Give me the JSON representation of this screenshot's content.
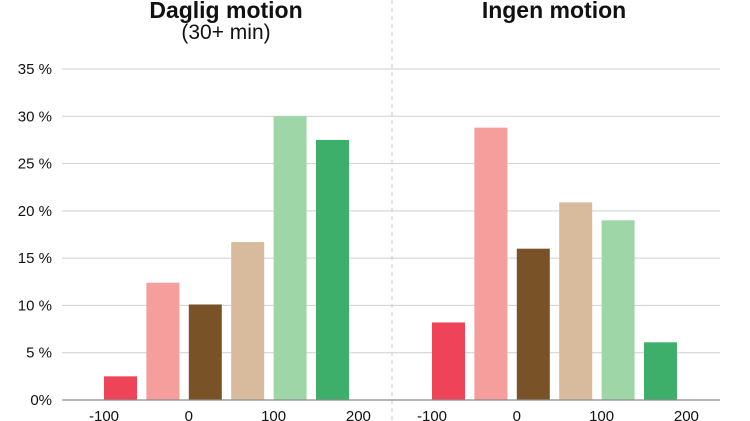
{
  "chart_data": [
    {
      "type": "bar",
      "title": "Daglig motion",
      "subtitle": "(30+ min)",
      "categories": [
        "-100",
        "-50",
        "0",
        "50",
        "100",
        "150"
      ],
      "x_tick_labels": [
        "-100",
        "0",
        "100",
        "200"
      ],
      "values": [
        2.5,
        12.4,
        10.1,
        16.7,
        30.0,
        27.5
      ],
      "colors": [
        "#ef4458",
        "#f59e9b",
        "#7a5228",
        "#d8bb9c",
        "#9ed6a8",
        "#3daf6a"
      ],
      "ylim": [
        0,
        35
      ],
      "y_tick_labels": [
        "0%",
        "5 %",
        "10 %",
        "15 %",
        "20 %",
        "25 %",
        "30 %",
        "35 %"
      ],
      "grid": true
    },
    {
      "type": "bar",
      "title": "Ingen motion",
      "categories": [
        "-100",
        "-50",
        "0",
        "50",
        "100",
        "150"
      ],
      "x_tick_labels": [
        "-100",
        "0",
        "100",
        "200"
      ],
      "values": [
        8.2,
        28.8,
        16.0,
        20.9,
        19.0,
        6.1
      ],
      "colors": [
        "#ef4458",
        "#f59e9b",
        "#7a5228",
        "#d8bb9c",
        "#9ed6a8",
        "#3daf6a"
      ],
      "ylim": [
        0,
        35
      ],
      "grid": true
    }
  ]
}
